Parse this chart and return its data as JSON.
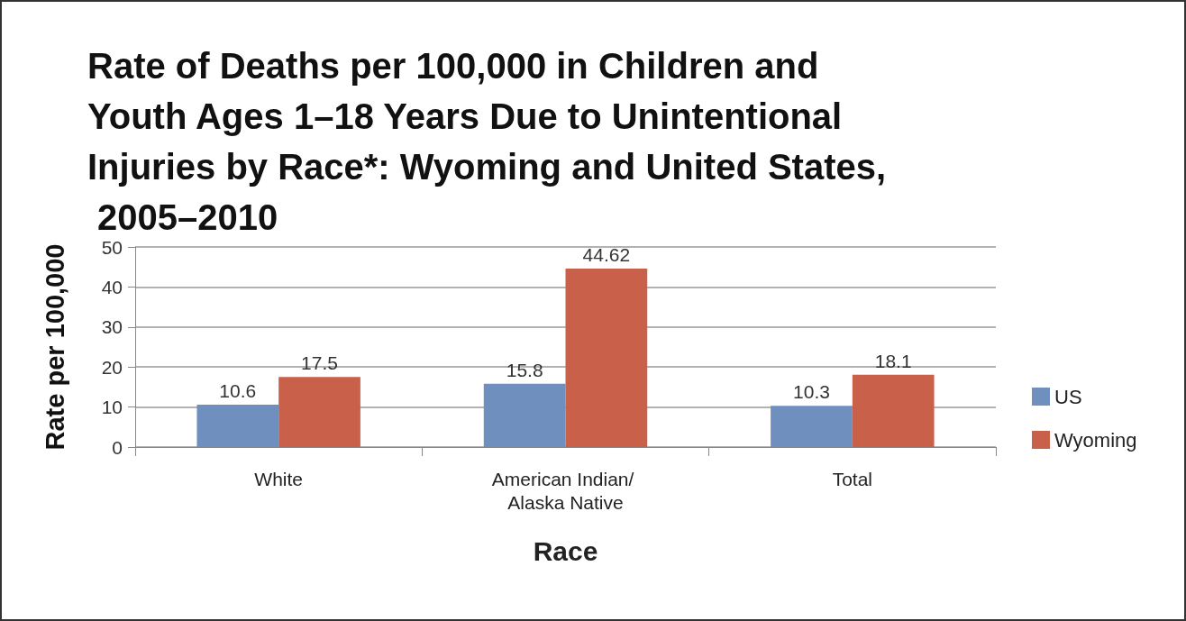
{
  "chart_data": {
    "type": "bar",
    "title": "Rate of Deaths per 100,000 in Children and Youth Ages 1–18 Years Due to Unintentional Injuries by Race*: Wyoming and United States, 2005–2010",
    "xlabel": "Race",
    "ylabel": "Rate per 100,000",
    "categories": [
      "White",
      "American Indian/ Alaska Native",
      "Total"
    ],
    "series": [
      {
        "name": "US",
        "color": "#6f8fbf",
        "values": [
          10.6,
          15.8,
          10.3
        ]
      },
      {
        "name": "Wyoming",
        "color": "#c9614a",
        "values": [
          17.5,
          44.62,
          18.1
        ]
      }
    ],
    "ylim": [
      0,
      50
    ],
    "yticks": [
      0,
      10,
      20,
      30,
      40,
      50
    ],
    "grid": "y",
    "legend": "right",
    "data_labels": true
  }
}
